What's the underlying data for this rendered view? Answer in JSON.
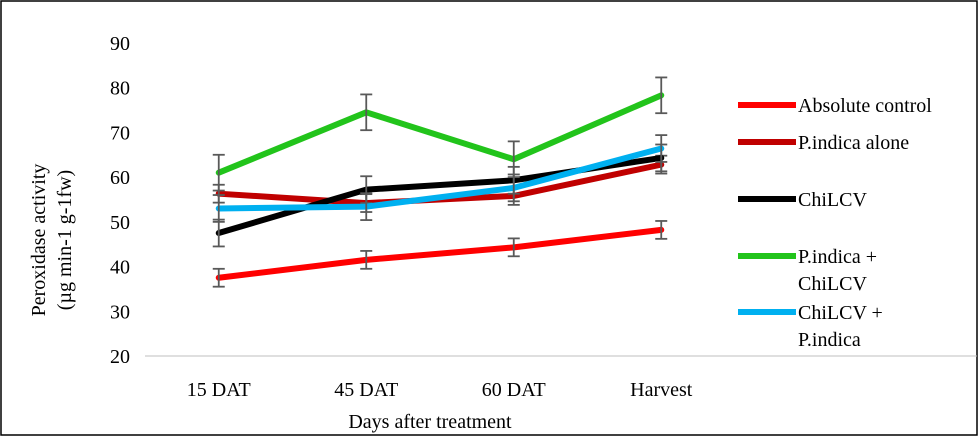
{
  "chart_data": {
    "type": "line",
    "categories": [
      "15 DAT",
      "45 DAT",
      "60 DAT",
      "Harvest"
    ],
    "xlabel": "Days after treatment",
    "ylabel_line1": "Peroxidase activity",
    "ylabel_line2": "(µg min-1 g-1fw)",
    "ylim": [
      20,
      90
    ],
    "yticks": [
      20,
      30,
      40,
      50,
      60,
      70,
      80,
      90
    ],
    "grid": false,
    "legend_position": "right",
    "series": [
      {
        "name": "Absolute control",
        "color": "#ff0000",
        "values": [
          37.5,
          41.5,
          44.3,
          48.2
        ],
        "errors": [
          2.0,
          2.0,
          2.0,
          2.0
        ]
      },
      {
        "name": "P.indica alone",
        "color": "#c00000",
        "values": [
          56.3,
          54.2,
          55.8,
          62.8
        ],
        "errors": [
          2.0,
          2.0,
          2.0,
          2.0
        ]
      },
      {
        "name": "ChiLCV",
        "color": "#000000",
        "values": [
          47.5,
          57.2,
          59.3,
          64.3
        ],
        "errors": [
          3.0,
          3.0,
          3.0,
          3.0
        ]
      },
      {
        "name": "P.indica + ChiLCV",
        "color": "#22c41b",
        "values": [
          61.0,
          74.5,
          64.0,
          78.3
        ],
        "errors": [
          4.0,
          4.0,
          4.0,
          4.0
        ]
      },
      {
        "name": "ChiLCV + P.indica",
        "color": "#00b0f0",
        "values": [
          53.0,
          53.4,
          57.6,
          66.4
        ],
        "errors": [
          3.0,
          3.0,
          3.0,
          3.0
        ]
      }
    ],
    "legend_lines": [
      [
        "Absolute control"
      ],
      [
        "P.indica alone"
      ],
      [
        "ChiLCV"
      ],
      [
        "P.indica +",
        "ChiLCV"
      ],
      [
        "ChiLCV +",
        "P.indica"
      ]
    ]
  }
}
